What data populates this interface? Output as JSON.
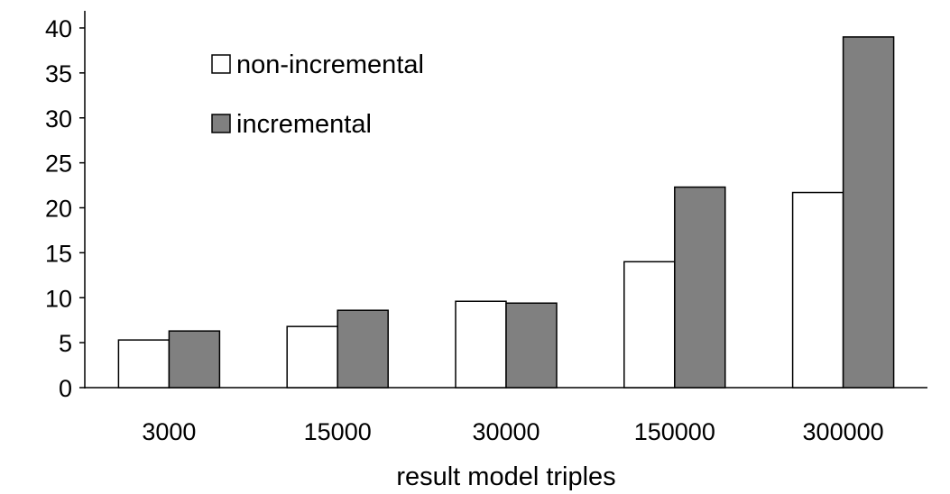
{
  "chart_data": {
    "type": "bar",
    "categories": [
      "3000",
      "15000",
      "30000",
      "150000",
      "300000"
    ],
    "series": [
      {
        "name": "non-incremental",
        "values": [
          5.3,
          6.8,
          9.6,
          14.0,
          21.7
        ],
        "color": "#ffffff"
      },
      {
        "name": "incremental",
        "values": [
          6.3,
          8.6,
          9.4,
          22.3,
          39.0
        ],
        "color": "#808080"
      }
    ],
    "title": "",
    "xlabel": "result model triples",
    "ylabel": "",
    "ylim": [
      0,
      40
    ],
    "yticks": [
      "0",
      "5",
      "10",
      "15",
      "20",
      "25",
      "30",
      "35",
      "40"
    ],
    "grid": false,
    "legend_position": "top-left"
  }
}
